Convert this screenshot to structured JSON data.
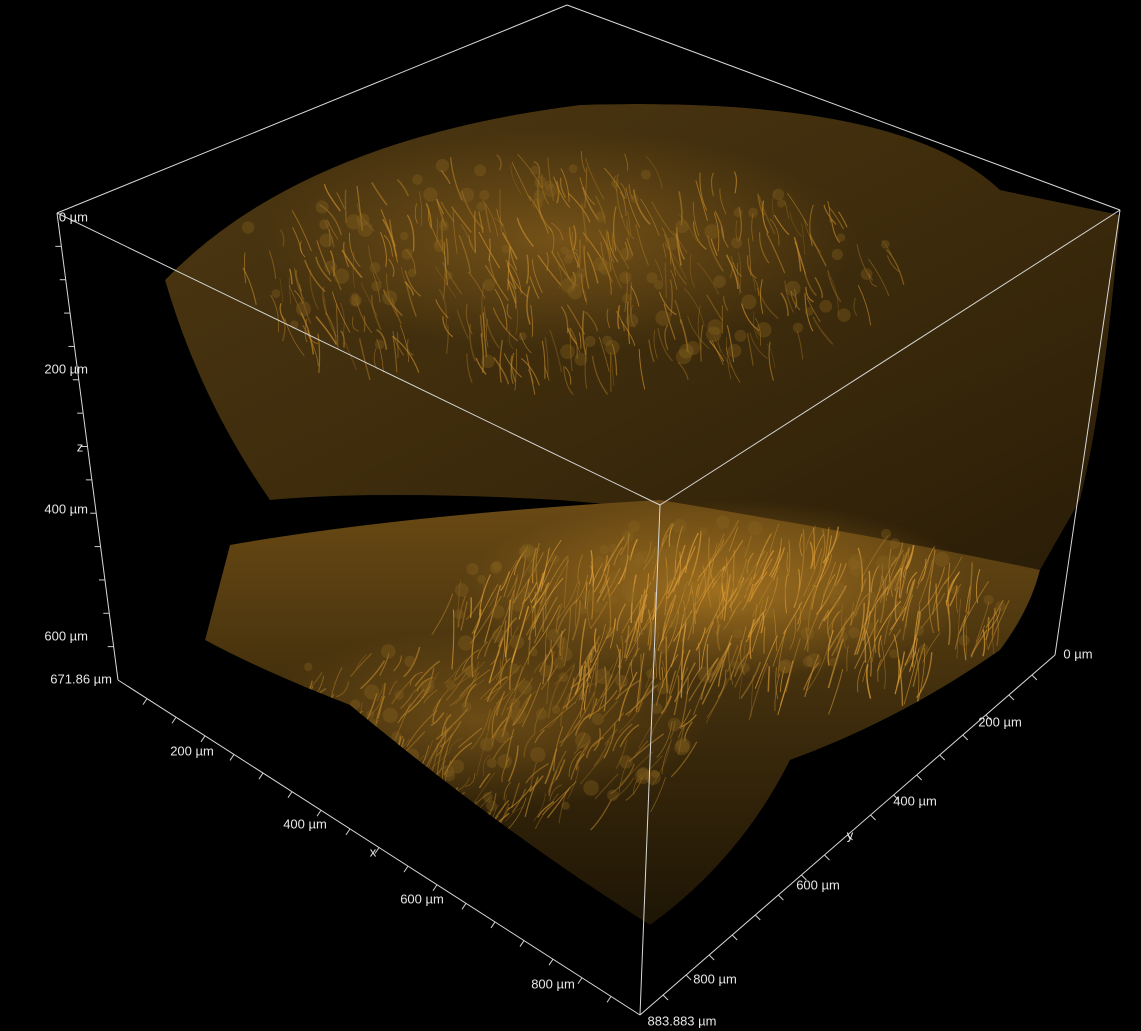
{
  "axes": {
    "z": {
      "name": "z",
      "labels": [
        "0 µm",
        "200 µm",
        "400 µm",
        "600 µm",
        "671.86 µm"
      ]
    },
    "x": {
      "name": "x",
      "labels": [
        "200 µm",
        "400 µm",
        "600 µm",
        "800 µm"
      ]
    },
    "y": {
      "name": "y",
      "labels": [
        "0 µm",
        "200 µm",
        "400 µm",
        "600 µm",
        "800 µm",
        "883.883 µm"
      ]
    }
  }
}
